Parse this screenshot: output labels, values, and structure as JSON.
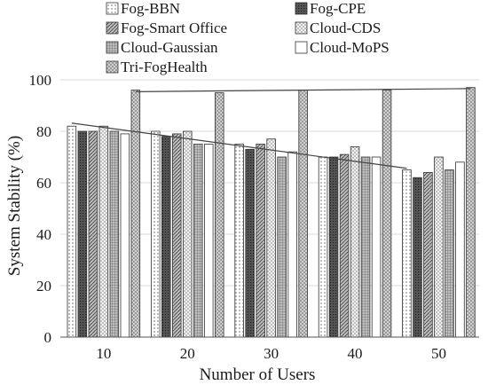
{
  "chart_data": {
    "type": "bar",
    "xlabel": "Number of Users",
    "ylabel": "System Stability (%)",
    "categories": [
      "10",
      "20",
      "30",
      "40",
      "50"
    ],
    "ylim": [
      0,
      100
    ],
    "yticks": [
      "0",
      "20",
      "40",
      "60",
      "80",
      "100"
    ],
    "grid": true,
    "legend_placement": "top",
    "series": [
      {
        "name": "Fog-BBN",
        "values": [
          82,
          80,
          75,
          70,
          65
        ],
        "pattern": "dots"
      },
      {
        "name": "Fog-CPE",
        "values": [
          80,
          78,
          73,
          70,
          62
        ],
        "pattern": "dense"
      },
      {
        "name": "Fog-Smart Office",
        "values": [
          80,
          79,
          75,
          71,
          64
        ],
        "pattern": "diag"
      },
      {
        "name": "Cloud-CDS",
        "values": [
          82,
          80,
          77,
          74,
          70
        ],
        "pattern": "cross"
      },
      {
        "name": "Cloud-Gaussian",
        "values": [
          80,
          75,
          70,
          70,
          65
        ],
        "pattern": "grid"
      },
      {
        "name": "Cloud-MoPS",
        "values": [
          79,
          75,
          72,
          70,
          68
        ],
        "pattern": "plain"
      },
      {
        "name": "Tri-FogHealth",
        "values": [
          96,
          95,
          96,
          96,
          97
        ],
        "pattern": "checker"
      }
    ]
  }
}
